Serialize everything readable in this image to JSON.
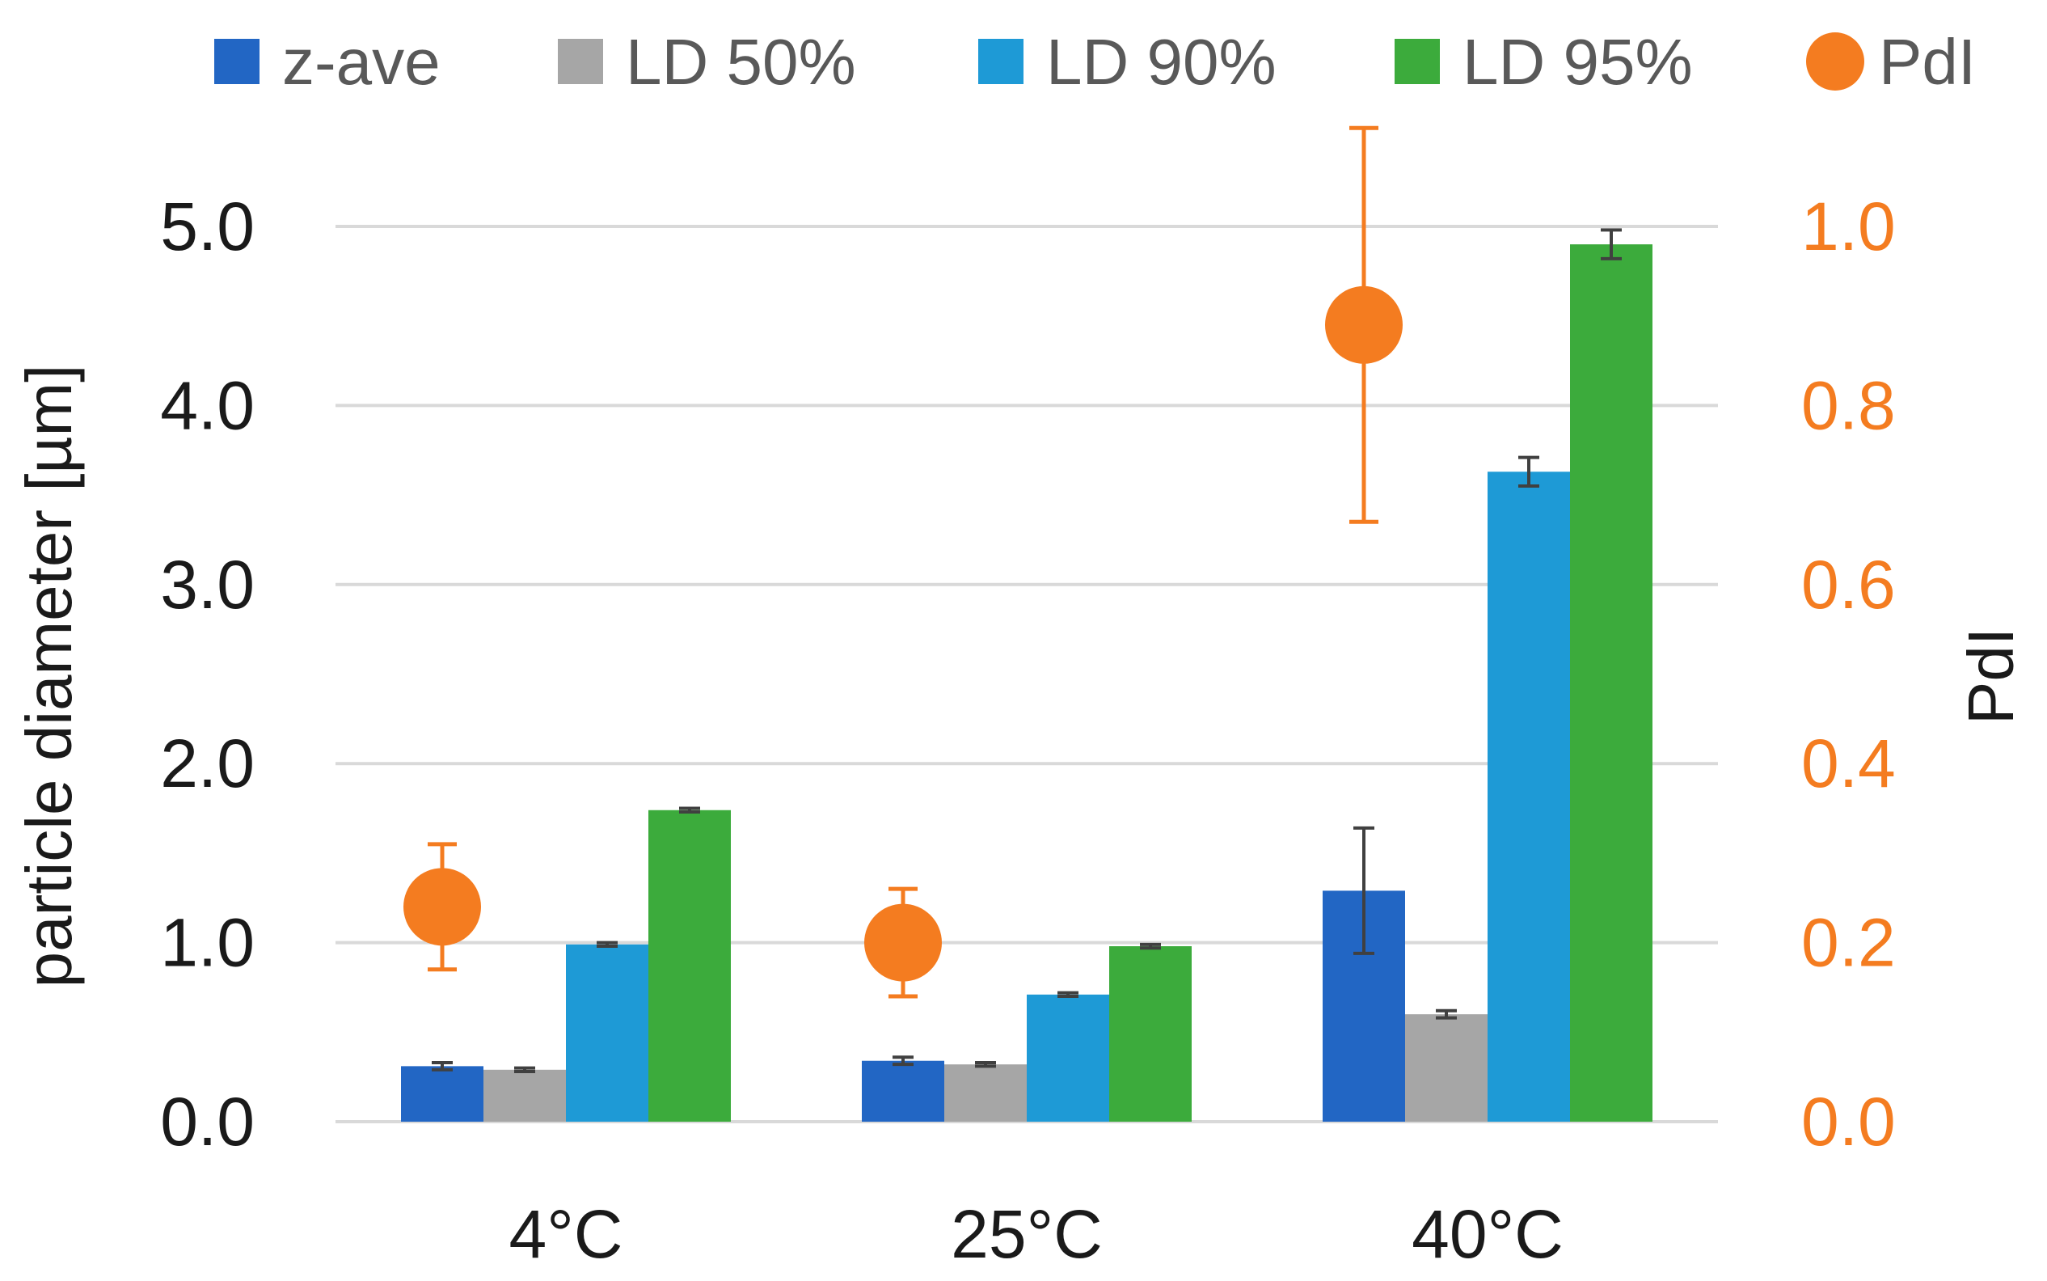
{
  "chart_data": {
    "type": "bar",
    "categories": [
      "4°C",
      "25°C",
      "40°C"
    ],
    "series": [
      {
        "name": "z-ave",
        "color": "#2266c4",
        "values": [
          0.31,
          0.34,
          1.29
        ],
        "errors": [
          0.02,
          0.02,
          0.35
        ]
      },
      {
        "name": "LD 50%",
        "color": "#a6a6a6",
        "values": [
          0.29,
          0.32,
          0.6
        ],
        "errors": [
          0.01,
          0.01,
          0.02
        ]
      },
      {
        "name": "LD 90%",
        "color": "#1e9ad6",
        "values": [
          0.99,
          0.71,
          3.63
        ],
        "errors": [
          0.01,
          0.01,
          0.08
        ]
      },
      {
        "name": "LD 95%",
        "color": "#3cab3c",
        "values": [
          1.74,
          0.98,
          4.9
        ],
        "errors": [
          0.01,
          0.01,
          0.08
        ]
      }
    ],
    "line_series": {
      "name": "PdI",
      "color": "#f47c20",
      "axis": "right",
      "values": [
        0.24,
        0.2,
        0.89
      ],
      "errors": [
        0.07,
        0.06,
        0.22
      ]
    },
    "ylabel": "particle diameter [µm]",
    "ylabel_right": "PdI",
    "ylim": [
      0,
      5
    ],
    "ylim_right": [
      0,
      1
    ],
    "yticks_left": [
      "0.0",
      "1.0",
      "2.0",
      "3.0",
      "4.0",
      "5.0"
    ],
    "yticks_right": [
      "0.0",
      "0.2",
      "0.4",
      "0.6",
      "0.8",
      "1.0"
    ],
    "grid": true,
    "legend_position": "top"
  }
}
